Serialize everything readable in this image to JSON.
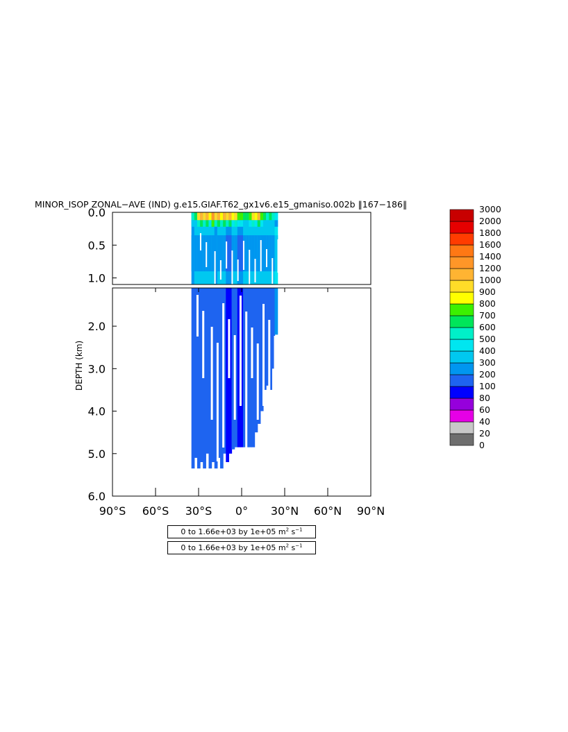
{
  "title": "MINOR_ISOP ZONAL−AVE (IND) g.e15.GIAF.T62_gx1v6.e15_gmaniso.002b ‖167−186‖",
  "contour_info": [
    {
      "prefix": "0 to 1.66e+03 by 1e+05 m",
      "sup1": "2",
      "mid": " s",
      "sup2": "−1"
    },
    {
      "prefix": "0 to 1.66e+03 by 1e+05 m",
      "sup1": "2",
      "mid": " s",
      "sup2": "−1"
    }
  ],
  "chart_data": {
    "type": "heatmap",
    "title": "MINOR_ISOP ZONAL−AVE (IND) g.e15.GIAF.T62_gx1v6.e15_gmaniso.002b ‖167−186‖",
    "ylabel": "DEPTH (km)",
    "xlabel": "",
    "x_range_deg": [
      -90,
      90
    ],
    "x_ticks": [
      {
        "value": -90,
        "label": "90°S"
      },
      {
        "value": -60,
        "label": "60°S"
      },
      {
        "value": -30,
        "label": "30°S"
      },
      {
        "value": 0,
        "label": "0°"
      },
      {
        "value": 30,
        "label": "30°N"
      },
      {
        "value": 60,
        "label": "60°N"
      },
      {
        "value": 90,
        "label": "90°N"
      }
    ],
    "upper_panel": {
      "depth_range_km": [
        0,
        1.1
      ],
      "y_ticks": [
        {
          "value": 0,
          "label": "0.0"
        },
        {
          "value": 0.5,
          "label": "0.5"
        },
        {
          "value": 1.0,
          "label": "1.0"
        }
      ]
    },
    "lower_panel": {
      "depth_range_km": [
        1.1,
        6.0
      ],
      "y_ticks": [
        {
          "value": 2,
          "label": "2.0"
        },
        {
          "value": 3,
          "label": "3.0"
        },
        {
          "value": 4,
          "label": "4.0"
        },
        {
          "value": 5,
          "label": "5.0"
        },
        {
          "value": 6,
          "label": "6.0"
        }
      ]
    },
    "colorbar": {
      "levels": [
        "0",
        "20",
        "40",
        "60",
        "80",
        "100",
        "200",
        "300",
        "400",
        "500",
        "600",
        "700",
        "800",
        "900",
        "1000",
        "1200",
        "1400",
        "1600",
        "1800",
        "2000",
        "3000"
      ],
      "colors": [
        "#6e6e6e",
        "#c8c8c8",
        "#e600e6",
        "#9600dc",
        "#0000ff",
        "#1e64f0",
        "#0096f0",
        "#00c8f0",
        "#00e6f0",
        "#00f0c8",
        "#00e65a",
        "#3cf000",
        "#ffff00",
        "#ffdc28",
        "#ffb432",
        "#ff9628",
        "#ff7814",
        "#ff3c00",
        "#e60000",
        "#c80000"
      ]
    },
    "data_extent": {
      "lat_min": -35,
      "lat_max": 25,
      "max_depth_km": 5.35,
      "ocean": "Indian"
    },
    "columns": [
      {
        "lat": -34,
        "depth": 5.35,
        "v": 140,
        "surf": 520
      },
      {
        "lat": -32,
        "depth": 5.1,
        "v": 160,
        "surf": 650
      },
      {
        "lat": -30,
        "depth": 5.35,
        "v": 150,
        "surf": 900
      },
      {
        "lat": -28,
        "depth": 5.2,
        "v": 170,
        "surf": 1000
      },
      {
        "lat": -26,
        "depth": 5.35,
        "v": 160,
        "surf": 950
      },
      {
        "lat": -24,
        "depth": 5.0,
        "v": 180,
        "surf": 1100
      },
      {
        "lat": -22,
        "depth": 5.35,
        "v": 150,
        "surf": 800
      },
      {
        "lat": -20,
        "depth": 5.2,
        "v": 170,
        "surf": 1200
      },
      {
        "lat": -18,
        "depth": 5.35,
        "v": 140,
        "surf": 900
      },
      {
        "lat": -16,
        "depth": 5.1,
        "v": 170,
        "surf": 1000
      },
      {
        "lat": -14,
        "depth": 5.35,
        "v": 160,
        "surf": 850
      },
      {
        "lat": -12,
        "depth": 5.0,
        "v": 150,
        "surf": 1100
      },
      {
        "lat": -10,
        "depth": 5.2,
        "v": 90,
        "surf": 900
      },
      {
        "lat": -8,
        "depth": 5.0,
        "v": 90,
        "surf": 1000
      },
      {
        "lat": -6,
        "depth": 4.9,
        "v": 160,
        "surf": 800
      },
      {
        "lat": -4,
        "depth": 4.85,
        "v": 150,
        "surf": 950
      },
      {
        "lat": -2,
        "depth": 4.85,
        "v": 90,
        "surf": 700
      },
      {
        "lat": 0,
        "depth": 4.85,
        "v": 90,
        "surf": 750
      },
      {
        "lat": 2,
        "depth": 4.85,
        "v": 150,
        "surf": 600
      },
      {
        "lat": 4,
        "depth": 4.85,
        "v": 160,
        "surf": 650
      },
      {
        "lat": 6,
        "depth": 4.85,
        "v": 170,
        "surf": 700
      },
      {
        "lat": 8,
        "depth": 4.85,
        "v": 150,
        "surf": 900
      },
      {
        "lat": 10,
        "depth": 4.5,
        "v": 160,
        "surf": 800
      },
      {
        "lat": 12,
        "depth": 4.3,
        "v": 150,
        "surf": 1000
      },
      {
        "lat": 14,
        "depth": 4.0,
        "v": 170,
        "surf": 700
      },
      {
        "lat": 16,
        "depth": 3.5,
        "v": 180,
        "surf": 600
      },
      {
        "lat": 18,
        "depth": 3.4,
        "v": 170,
        "surf": 550
      },
      {
        "lat": 20,
        "depth": 3.5,
        "v": 180,
        "surf": 600
      },
      {
        "lat": 22,
        "depth": 3.0,
        "v": 190,
        "surf": 500
      },
      {
        "lat": 24,
        "depth": 2.2,
        "v": 250,
        "surf": 450
      }
    ]
  }
}
